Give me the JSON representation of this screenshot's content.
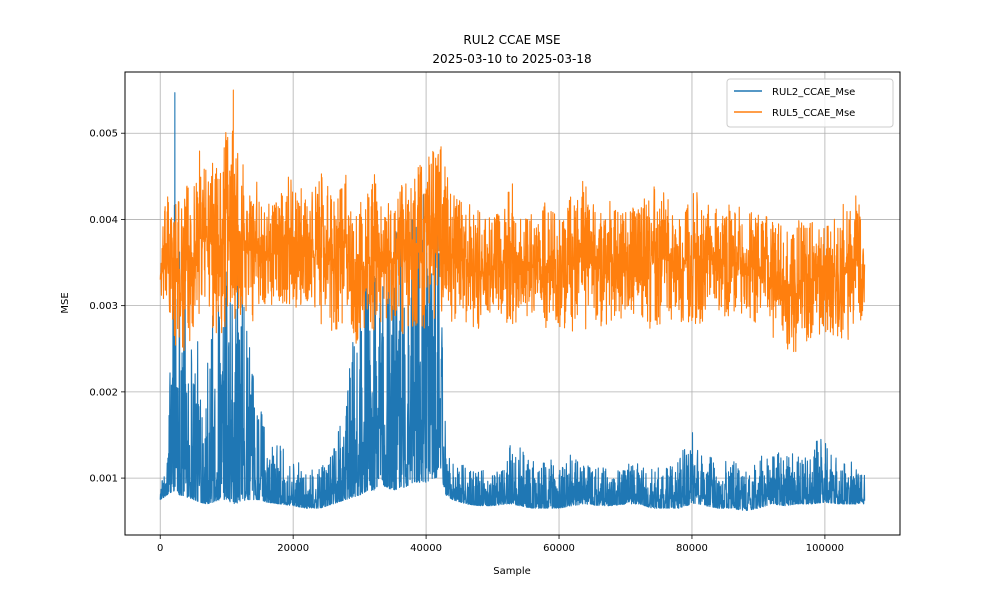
{
  "chart_data": {
    "type": "line",
    "title": "RUL2 CCAE MSE",
    "subtitle": "2025-03-10 to 2025-03-18",
    "xlabel": "Sample",
    "ylabel": "MSE",
    "xlim": [
      -5300,
      111300
    ],
    "ylim": [
      0.00034,
      0.00571
    ],
    "xticks": [
      0,
      20000,
      40000,
      60000,
      80000,
      100000
    ],
    "xtick_labels": [
      "0",
      "20000",
      "40000",
      "60000",
      "80000",
      "100000"
    ],
    "yticks": [
      0.001,
      0.002,
      0.003,
      0.004,
      0.005
    ],
    "ytick_labels": [
      "0.001",
      "0.002",
      "0.003",
      "0.004",
      "0.005"
    ],
    "grid": true,
    "legend_position": "upper right",
    "series": [
      {
        "name": "RUL2_CCAE_Mse",
        "color": "#1f77b4",
        "x": [
          0,
          1000,
          2000,
          2200,
          3000,
          4000,
          5000,
          6000,
          7000,
          8000,
          9000,
          10000,
          11000,
          12000,
          13000,
          14000,
          15000,
          16000,
          18000,
          20000,
          22000,
          24000,
          26000,
          28000,
          29000,
          30000,
          31000,
          32000,
          33000,
          34000,
          35000,
          36000,
          37000,
          38000,
          39000,
          40000,
          41000,
          42000,
          43000,
          44000,
          46000,
          48000,
          50000,
          52000,
          53000,
          54000,
          56000,
          58000,
          60000,
          62000,
          64000,
          66000,
          68000,
          70000,
          72000,
          74000,
          76000,
          78000,
          80000,
          81000,
          82000,
          84000,
          86000,
          88000,
          90000,
          92000,
          94000,
          96000,
          98000,
          100000,
          102000,
          104000,
          106000
        ],
        "min": [
          0.00075,
          0.0008,
          0.00085,
          0.00085,
          0.0008,
          0.00078,
          0.00075,
          0.00072,
          0.0007,
          0.00072,
          0.00075,
          0.00075,
          0.0007,
          0.00072,
          0.00075,
          0.00075,
          0.00075,
          0.00072,
          0.0007,
          0.00068,
          0.00065,
          0.00065,
          0.0007,
          0.00075,
          0.00078,
          0.0008,
          0.00085,
          0.00085,
          0.0009,
          0.0009,
          0.00085,
          0.00088,
          0.0009,
          0.00095,
          0.00095,
          0.00095,
          0.001,
          0.001,
          0.0008,
          0.00075,
          0.0007,
          0.00068,
          0.00068,
          0.0007,
          0.0007,
          0.00068,
          0.00065,
          0.00065,
          0.00065,
          0.00068,
          0.0007,
          0.00068,
          0.00068,
          0.0007,
          0.0007,
          0.00065,
          0.00065,
          0.00065,
          0.0007,
          0.0007,
          0.00068,
          0.00065,
          0.00065,
          0.00062,
          0.00065,
          0.0007,
          0.00068,
          0.0007,
          0.0007,
          0.00072,
          0.0007,
          0.0007,
          0.0007
        ],
        "max": [
          0.00095,
          0.0011,
          0.0042,
          0.00547,
          0.0042,
          0.0037,
          0.0028,
          0.0025,
          0.0025,
          0.003,
          0.0032,
          0.0035,
          0.0033,
          0.0036,
          0.0028,
          0.0022,
          0.0019,
          0.0016,
          0.0014,
          0.0012,
          0.00115,
          0.0011,
          0.0013,
          0.0019,
          0.0029,
          0.0032,
          0.0034,
          0.0036,
          0.0034,
          0.0037,
          0.0039,
          0.0044,
          0.0043,
          0.0041,
          0.0042,
          0.0044,
          0.0043,
          0.0042,
          0.0014,
          0.0012,
          0.00115,
          0.0011,
          0.0011,
          0.0012,
          0.0016,
          0.0014,
          0.0012,
          0.00125,
          0.0012,
          0.0013,
          0.0012,
          0.00115,
          0.0011,
          0.00115,
          0.0012,
          0.0011,
          0.00115,
          0.0012,
          0.0016,
          0.0014,
          0.0013,
          0.0012,
          0.0012,
          0.00115,
          0.00125,
          0.0013,
          0.0014,
          0.0013,
          0.0014,
          0.0015,
          0.0012,
          0.0012,
          0.0011
        ]
      },
      {
        "name": "RUL5_CCAE_Mse",
        "color": "#ff7f0e",
        "x": [
          0,
          1000,
          2000,
          3000,
          4000,
          5000,
          6000,
          7000,
          8000,
          9000,
          10000,
          11000,
          12000,
          13000,
          14000,
          15000,
          16000,
          18000,
          20000,
          22000,
          24000,
          26000,
          28000,
          29000,
          30000,
          31000,
          32000,
          33000,
          34000,
          35000,
          36000,
          37000,
          38000,
          39000,
          40000,
          41000,
          42000,
          43000,
          44000,
          46000,
          48000,
          50000,
          52000,
          53000,
          54000,
          56000,
          58000,
          60000,
          62000,
          64000,
          66000,
          68000,
          70000,
          72000,
          74000,
          76000,
          78000,
          80000,
          82000,
          84000,
          86000,
          88000,
          90000,
          92000,
          94000,
          95000,
          96000,
          98000,
          100000,
          102000,
          104000,
          105000,
          106000
        ],
        "min": [
          0.0031,
          0.0027,
          0.0026,
          0.0024,
          0.0025,
          0.0027,
          0.0028,
          0.0029,
          0.0027,
          0.0026,
          0.0027,
          0.0028,
          0.0029,
          0.0028,
          0.0028,
          0.003,
          0.003,
          0.003,
          0.003,
          0.0029,
          0.0028,
          0.0027,
          0.0028,
          0.0025,
          0.0026,
          0.0027,
          0.0026,
          0.0027,
          0.0028,
          0.0026,
          0.0027,
          0.0026,
          0.0027,
          0.0028,
          0.0027,
          0.0026,
          0.0028,
          0.0029,
          0.0028,
          0.0028,
          0.0027,
          0.0028,
          0.0028,
          0.0027,
          0.0028,
          0.0028,
          0.0027,
          0.0027,
          0.0027,
          0.0027,
          0.0027,
          0.0028,
          0.0028,
          0.0028,
          0.0027,
          0.0028,
          0.0028,
          0.0027,
          0.0028,
          0.0029,
          0.0028,
          0.0028,
          0.0027,
          0.0026,
          0.0025,
          0.0024,
          0.0025,
          0.0026,
          0.0027,
          0.0026,
          0.0026,
          0.0027,
          0.0028
        ],
        "max": [
          0.0036,
          0.0044,
          0.0042,
          0.0043,
          0.0044,
          0.0045,
          0.0049,
          0.0047,
          0.0047,
          0.0047,
          0.0051,
          0.0055,
          0.0048,
          0.0046,
          0.0045,
          0.0044,
          0.0042,
          0.0043,
          0.0046,
          0.0042,
          0.0046,
          0.0043,
          0.0046,
          0.0039,
          0.0042,
          0.0043,
          0.0047,
          0.0044,
          0.0041,
          0.0045,
          0.0045,
          0.0046,
          0.0044,
          0.0048,
          0.0047,
          0.0048,
          0.005,
          0.0046,
          0.0043,
          0.0042,
          0.0041,
          0.004,
          0.0042,
          0.0046,
          0.0041,
          0.0041,
          0.0042,
          0.0041,
          0.0043,
          0.0045,
          0.0041,
          0.0043,
          0.0041,
          0.0042,
          0.0044,
          0.0043,
          0.004,
          0.0043,
          0.0044,
          0.0041,
          0.0042,
          0.0041,
          0.0041,
          0.004,
          0.0039,
          0.0038,
          0.004,
          0.004,
          0.0039,
          0.0041,
          0.0043,
          0.0044,
          0.0037
        ]
      }
    ]
  }
}
